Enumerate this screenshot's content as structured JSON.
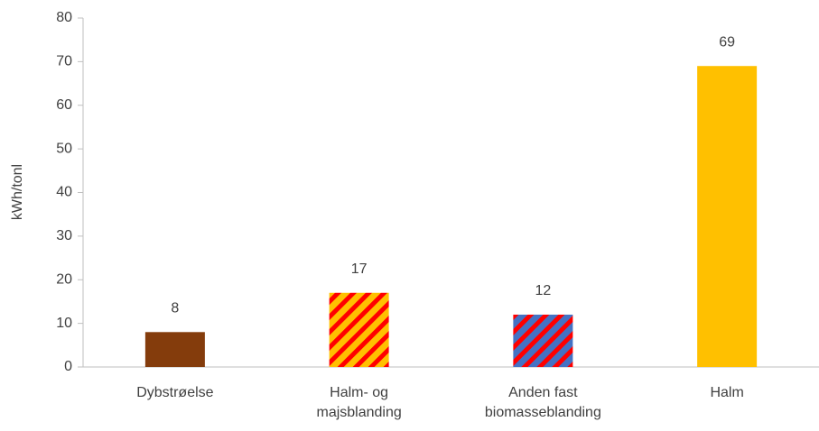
{
  "chart_data": {
    "type": "bar",
    "y_label": "kWh/tonl",
    "categories": [
      "Dybstrøelse",
      "Halm- og majsblanding",
      "Anden fast biomasseblanding",
      "Halm"
    ],
    "values": [
      8,
      17,
      12,
      69
    ],
    "colors": [
      "#843C0C",
      "#FFC000",
      "#4472C4",
      "#FFC000"
    ],
    "hatch_colors": [
      null,
      "#FF0000",
      "#FF0000",
      null
    ],
    "ylim": [
      0,
      80
    ],
    "yticks": [
      0,
      10,
      20,
      30,
      40,
      50,
      60,
      70,
      80
    ],
    "grid": false
  }
}
